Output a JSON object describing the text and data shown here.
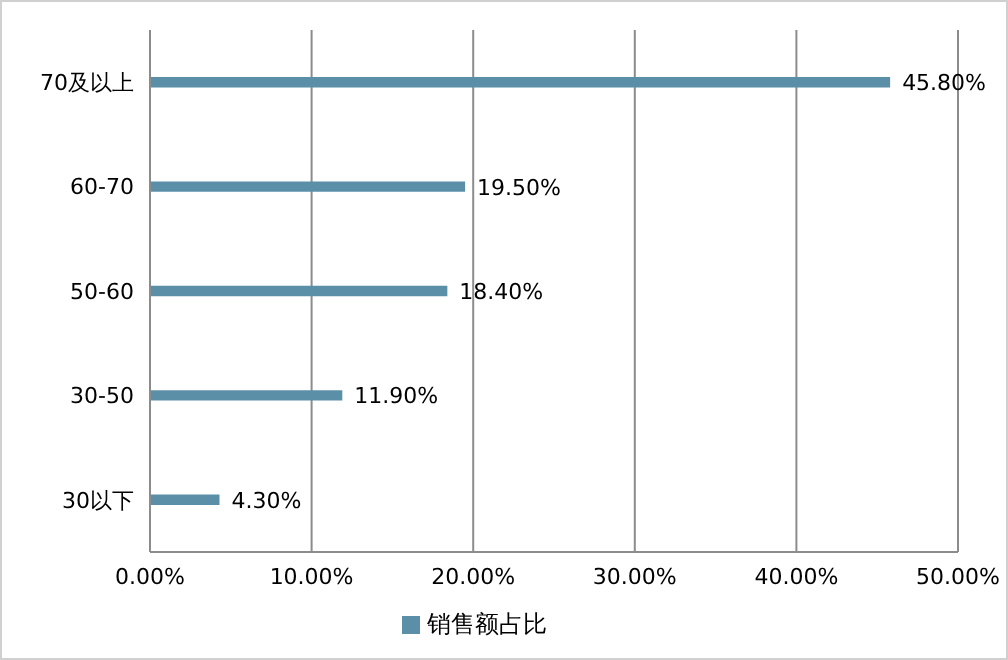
{
  "chart_data": {
    "type": "bar",
    "orientation": "horizontal",
    "categories": [
      "70及以上",
      "60-70",
      "50-60",
      "30-50",
      "30以下"
    ],
    "series": [
      {
        "name": "销售额占比",
        "color": "#5b8fa8",
        "values": [
          45.8,
          19.5,
          18.4,
          11.9,
          4.3
        ],
        "value_labels": [
          "45.80%",
          "19.50%",
          "18.40%",
          "11.90%",
          "4.30%"
        ]
      }
    ],
    "xlim": [
      0,
      50
    ],
    "xticks": [
      {
        "value": 0,
        "label": "0.00%"
      },
      {
        "value": 10,
        "label": "10.00%"
      },
      {
        "value": 20,
        "label": "20.00%"
      },
      {
        "value": 30,
        "label": "30.00%"
      },
      {
        "value": 40,
        "label": "40.00%"
      },
      {
        "value": 50,
        "label": "50.00%"
      }
    ],
    "grid": "x",
    "legend": "bottom"
  }
}
